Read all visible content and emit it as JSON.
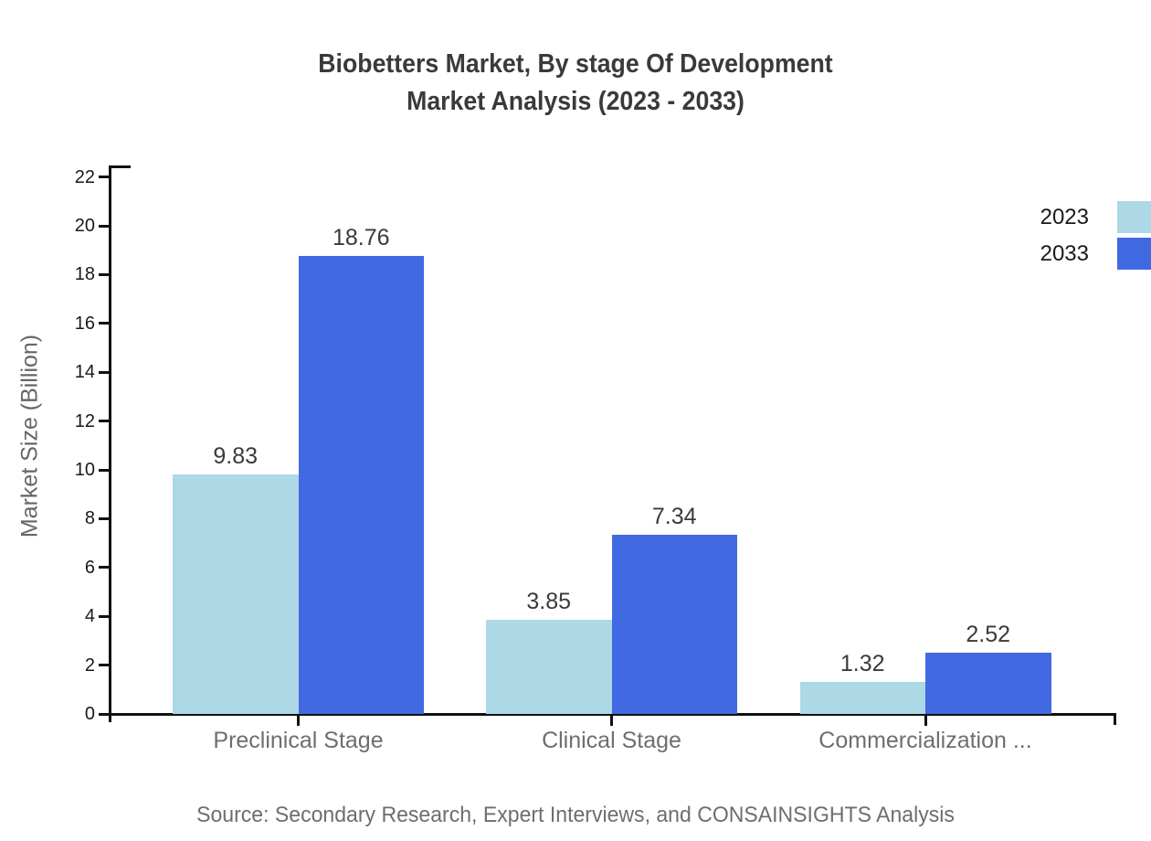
{
  "title": {
    "line1": "Biobetters Market, By stage Of Development",
    "line2": "Market Analysis (2023 - 2033)"
  },
  "source": "Source: Secondary Research, Expert Interviews, and CONSAINSIGHTS Analysis",
  "chart_data": {
    "type": "bar",
    "categories": [
      "Preclinical Stage",
      "Clinical Stage",
      "Commercialization ..."
    ],
    "series": [
      {
        "name": "2023",
        "color": "#ADD8E6",
        "values": [
          9.83,
          3.85,
          1.32
        ]
      },
      {
        "name": "2033",
        "color": "#4169E1",
        "values": [
          18.76,
          7.34,
          2.52
        ]
      }
    ],
    "title": "Biobetters Market, By stage Of Development Market Analysis (2023 - 2033)",
    "xlabel": "",
    "ylabel": "Market Size (Billion)",
    "ylim": [
      0,
      22
    ],
    "yticks": [
      0,
      2,
      4,
      6,
      8,
      10,
      12,
      14,
      16,
      18,
      20,
      22
    ],
    "grid": false,
    "legend_position": "top-right",
    "value_labels": [
      "9.83",
      "18.76",
      "3.85",
      "7.34",
      "1.32",
      "2.52"
    ]
  },
  "colors": {
    "axis": "#111111",
    "tick_label": "#1a1a1a",
    "title": "#3a3a3a",
    "value_label": "#3a3a3a",
    "category_label": "#6e6e6e",
    "source": "#6e6e6e",
    "ylabel": "#666666",
    "background": "#ffffff"
  }
}
